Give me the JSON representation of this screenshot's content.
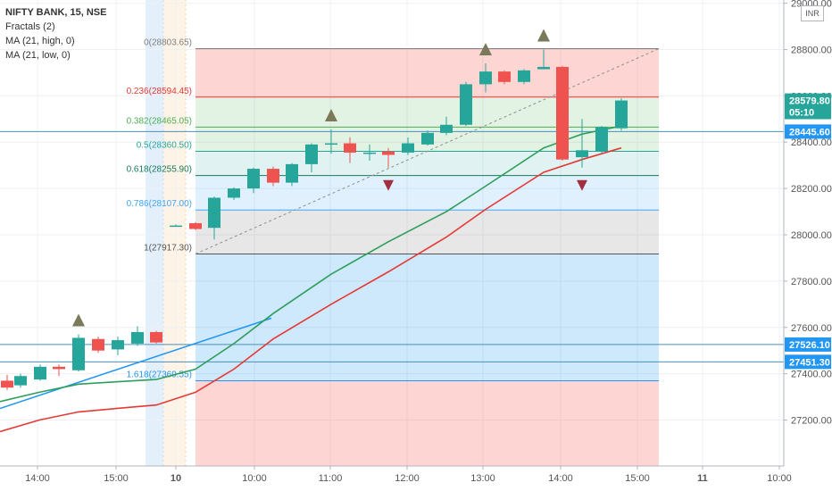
{
  "header": {
    "symbol": "NIFTY BANK, 15, NSE",
    "indicators": [
      "Fractals (2)",
      "MA (21, high, 0)",
      "MA (21, low, 0)"
    ]
  },
  "currency": "INR",
  "colors": {
    "up": "#26a69a",
    "down": "#ef5350",
    "ma_high": "#2e9e5b",
    "ma_low": "#e53935",
    "fractal_up": "#7a7a5a",
    "fractal_down": "#a03040",
    "trendline": "#2196f3",
    "hline": "#4a90b8"
  },
  "chart_data": {
    "type": "candlestick",
    "y_axis": {
      "min": 27000,
      "max": 29000,
      "ticks": [
        27200,
        27400,
        27600,
        27800,
        28000,
        28200,
        28400,
        28600,
        28800,
        29000
      ],
      "tick_labels": [
        "27200.00",
        "27400.00",
        "27600.00",
        "27800.00",
        "28000.00",
        "28200.00",
        "28400.00",
        "28600.00",
        "28800.00",
        "29000.00"
      ]
    },
    "x_axis": {
      "labels": [
        "14:00",
        "15:00",
        "10",
        "10:00",
        "11:00",
        "12:00",
        "13:00",
        "14:00",
        "15:00",
        "11",
        "10:00"
      ]
    },
    "price_labels": [
      {
        "value": 28579.8,
        "text": "28579.80",
        "color": "#26a69a"
      },
      {
        "value": 28530,
        "text": "05:10",
        "color": "#26a69a"
      },
      {
        "value": 28445.6,
        "text": "28445.60",
        "color": "#2196f3"
      },
      {
        "value": 27526.1,
        "text": "27526.10",
        "color": "#2196f3"
      },
      {
        "value": 27451.3,
        "text": "27451.30",
        "color": "#2196f3"
      }
    ],
    "horizontal_lines": [
      28445.6,
      27526.1,
      27451.3
    ],
    "fibonacci": {
      "levels": [
        {
          "ratio": "0",
          "price": "28803.65",
          "value": 28803.65,
          "color": "#808080"
        },
        {
          "ratio": "0.236",
          "price": "28594.45",
          "value": 28594.45,
          "color": "#e53935"
        },
        {
          "ratio": "0.382",
          "price": "28465.05",
          "value": 28465.05,
          "color": "#4caf50"
        },
        {
          "ratio": "0.5",
          "price": "28360.50",
          "value": 28360.5,
          "color": "#26a69a"
        },
        {
          "ratio": "0.618",
          "price": "28255.90",
          "value": 28255.9,
          "color": "#1b7a5a"
        },
        {
          "ratio": "0.786",
          "price": "28107.00",
          "value": 28107.0,
          "color": "#42a5f5"
        },
        {
          "ratio": "1",
          "price": "27917.30",
          "value": 27917.3,
          "color": "#555555"
        },
        {
          "ratio": "1.618",
          "price": "27369.55",
          "value": 27369.55,
          "color": "#2196f3"
        }
      ]
    },
    "candles": [
      {
        "x": 8,
        "o": 27370,
        "h": 27395,
        "c": 27340,
        "l": 27330
      },
      {
        "x": 23,
        "o": 27350,
        "h": 27400,
        "c": 27390,
        "l": 27340
      },
      {
        "x": 45,
        "o": 27375,
        "h": 27440,
        "c": 27430,
        "l": 27370
      },
      {
        "x": 66,
        "o": 27430,
        "h": 27440,
        "c": 27420,
        "l": 27390
      },
      {
        "x": 88,
        "o": 27415,
        "h": 27570,
        "c": 27555,
        "l": 27410
      },
      {
        "x": 110,
        "o": 27550,
        "h": 27560,
        "c": 27500,
        "l": 27490
      },
      {
        "x": 132,
        "o": 27505,
        "h": 27560,
        "c": 27545,
        "l": 27480
      },
      {
        "x": 154,
        "o": 27530,
        "h": 27605,
        "c": 27580,
        "l": 27520
      },
      {
        "x": 175,
        "o": 27580,
        "h": 27585,
        "c": 27535,
        "l": 27530
      },
      {
        "x": 197,
        "o": 28040,
        "h": 28045,
        "c": 28040,
        "l": 28035
      },
      {
        "x": 219,
        "o": 28050,
        "h": 28055,
        "c": 28025,
        "l": 28020
      },
      {
        "x": 240,
        "o": 28030,
        "h": 28165,
        "c": 28160,
        "l": 27980
      },
      {
        "x": 262,
        "o": 28160,
        "h": 28205,
        "c": 28200,
        "l": 28150
      },
      {
        "x": 284,
        "o": 28200,
        "h": 28290,
        "c": 28285,
        "l": 28180
      },
      {
        "x": 306,
        "o": 28285,
        "h": 28295,
        "c": 28225,
        "l": 28210
      },
      {
        "x": 327,
        "o": 28225,
        "h": 28310,
        "c": 28305,
        "l": 28210
      },
      {
        "x": 349,
        "o": 28305,
        "h": 28395,
        "c": 28390,
        "l": 28270
      },
      {
        "x": 371,
        "o": 28395,
        "h": 28455,
        "c": 28395,
        "l": 28350
      },
      {
        "x": 392,
        "o": 28395,
        "h": 28420,
        "c": 28355,
        "l": 28310
      },
      {
        "x": 414,
        "o": 28355,
        "h": 28390,
        "c": 28355,
        "l": 28320
      },
      {
        "x": 435,
        "o": 28360,
        "h": 28375,
        "c": 28345,
        "l": 28290
      },
      {
        "x": 457,
        "o": 28355,
        "h": 28420,
        "c": 28395,
        "l": 28345
      },
      {
        "x": 479,
        "o": 28390,
        "h": 28450,
        "c": 28440,
        "l": 28385
      },
      {
        "x": 500,
        "o": 28440,
        "h": 28510,
        "c": 28475,
        "l": 28430
      },
      {
        "x": 522,
        "o": 28475,
        "h": 28660,
        "c": 28650,
        "l": 28470
      },
      {
        "x": 544,
        "o": 28650,
        "h": 28740,
        "c": 28705,
        "l": 28615
      },
      {
        "x": 565,
        "o": 28705,
        "h": 28710,
        "c": 28660,
        "l": 28650
      },
      {
        "x": 587,
        "o": 28660,
        "h": 28715,
        "c": 28710,
        "l": 28650
      },
      {
        "x": 609,
        "o": 28715,
        "h": 28800,
        "c": 28725,
        "l": 28715
      },
      {
        "x": 630,
        "o": 28725,
        "h": 28730,
        "c": 28325,
        "l": 28320
      },
      {
        "x": 652,
        "o": 28335,
        "h": 28500,
        "c": 28365,
        "l": 28290
      },
      {
        "x": 674,
        "o": 28360,
        "h": 28470,
        "c": 28465,
        "l": 28350
      },
      {
        "x": 696,
        "o": 28460,
        "h": 28590,
        "c": 28580,
        "l": 28450
      }
    ],
    "fractals_up": [
      {
        "x": 88,
        "v": 27570
      },
      {
        "x": 371,
        "v": 28455
      },
      {
        "x": 544,
        "v": 28740
      },
      {
        "x": 609,
        "v": 28800
      }
    ],
    "fractals_down": [
      {
        "x": 435,
        "v": 28290
      },
      {
        "x": 652,
        "v": 28290
      }
    ],
    "ma_high": [
      {
        "x": 0,
        "v": 27280
      },
      {
        "x": 44,
        "v": 27320
      },
      {
        "x": 88,
        "v": 27355
      },
      {
        "x": 130,
        "v": 27365
      },
      {
        "x": 175,
        "v": 27375
      },
      {
        "x": 219,
        "v": 27420
      },
      {
        "x": 262,
        "v": 27530
      },
      {
        "x": 306,
        "v": 27660
      },
      {
        "x": 371,
        "v": 27830
      },
      {
        "x": 435,
        "v": 27970
      },
      {
        "x": 500,
        "v": 28100
      },
      {
        "x": 544,
        "v": 28210
      },
      {
        "x": 609,
        "v": 28375
      },
      {
        "x": 652,
        "v": 28435
      },
      {
        "x": 696,
        "v": 28470
      }
    ],
    "ma_low": [
      {
        "x": 0,
        "v": 27150
      },
      {
        "x": 44,
        "v": 27200
      },
      {
        "x": 88,
        "v": 27235
      },
      {
        "x": 130,
        "v": 27250
      },
      {
        "x": 175,
        "v": 27265
      },
      {
        "x": 219,
        "v": 27320
      },
      {
        "x": 262,
        "v": 27420
      },
      {
        "x": 306,
        "v": 27550
      },
      {
        "x": 371,
        "v": 27700
      },
      {
        "x": 435,
        "v": 27840
      },
      {
        "x": 500,
        "v": 27990
      },
      {
        "x": 544,
        "v": 28110
      },
      {
        "x": 609,
        "v": 28270
      },
      {
        "x": 652,
        "v": 28325
      },
      {
        "x": 696,
        "v": 28375
      }
    ],
    "trendline": [
      {
        "x": 0,
        "v": 27250
      },
      {
        "x": 304,
        "v": 27640
      }
    ]
  }
}
